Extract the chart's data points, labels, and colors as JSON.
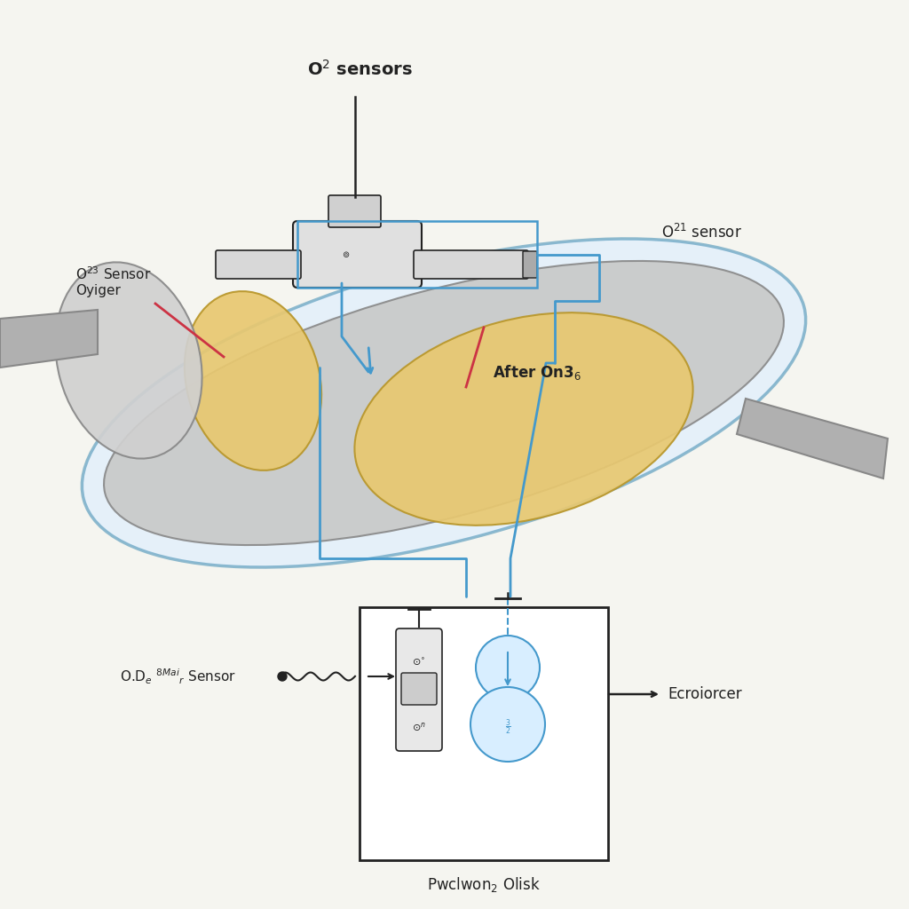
{
  "bg_color": "#f5f5f0",
  "label_o2_sensors": "O$^2$ sensors",
  "label_o21_sensor": "O$^{21}$ sensor",
  "label_o23_sensor": "O$^{23}$ Sensor\nOyiger",
  "label_after_on": "After On3$_6$",
  "label_od_sensor": "O.D$_e$ $^{8Mai}$$_r$ Sensor",
  "label_ecroiorcer": "Ecroiorcer",
  "label_pwclwon": "Pwclwon$_2$ Olisk",
  "blue_line_color": "#4499cc",
  "red_line_color": "#cc3344",
  "black_line_color": "#222222",
  "body_outline_color": "#5599bb",
  "body_fill": "#ddeeff",
  "catalyst_fill": "#e8c870",
  "metal_fill": "#c8c8c8",
  "dark_metal": "#888888",
  "cat_edge": "#b8962a",
  "white": "#ffffff",
  "light_gray": "#e0e0e0",
  "pipe_fill": "#b0b0b0"
}
